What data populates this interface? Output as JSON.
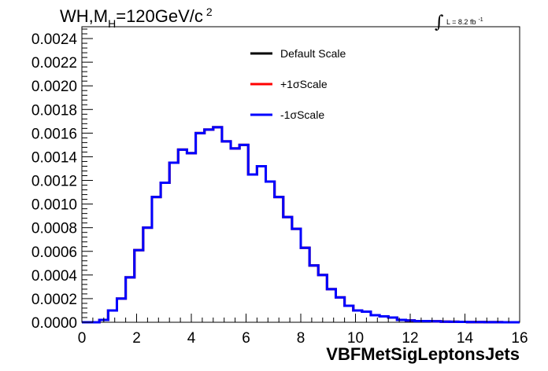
{
  "chart_data": {
    "type": "line",
    "title": "WH,M",
    "title_sub": "H",
    "title_rest": "=120GeV/c",
    "title_sup": "2",
    "lumi_text": "L = 8.2 fb",
    "lumi_sup": "-1",
    "xlabel": "VBFMetSigLeptonsJets",
    "ylabel": "",
    "xlim": [
      0,
      16
    ],
    "ylim": [
      0,
      0.0025
    ],
    "x_ticks": [
      0,
      2,
      4,
      6,
      8,
      10,
      12,
      14,
      16
    ],
    "x_tick_labels": [
      "0",
      "2",
      "4",
      "6",
      "8",
      "10",
      "12",
      "14",
      "16"
    ],
    "y_ticks": [
      0,
      0.0002,
      0.0004,
      0.0006,
      0.0008,
      0.001,
      0.0012,
      0.0014,
      0.0016,
      0.0018,
      0.002,
      0.0022,
      0.0024
    ],
    "y_tick_labels": [
      "0.0000",
      "0.0002",
      "0.0004",
      "0.0006",
      "0.0008",
      "0.0010",
      "0.0012",
      "0.0014",
      "0.0016",
      "0.0018",
      "0.0020",
      "0.0022",
      "0.0024"
    ],
    "grid": false,
    "legend_position": "top-center",
    "bin_edges": [
      0,
      0.32,
      0.64,
      0.96,
      1.28,
      1.6,
      1.92,
      2.24,
      2.56,
      2.88,
      3.2,
      3.52,
      3.84,
      4.16,
      4.48,
      4.8,
      5.12,
      5.44,
      5.76,
      6.08,
      6.4,
      6.72,
      7.04,
      7.36,
      7.68,
      8.0,
      8.32,
      8.64,
      8.96,
      9.28,
      9.6,
      9.92,
      10.24,
      10.56,
      10.88,
      11.2,
      11.52,
      11.84,
      12.16,
      12.48,
      12.8,
      13.12,
      13.44,
      13.76,
      14.08,
      14.4,
      14.72,
      15.04,
      15.36,
      15.68,
      16.0
    ],
    "series": [
      {
        "name": "Default Scale",
        "color": "#000000",
        "values": [
          0,
          0,
          2e-05,
          0.0001,
          0.0002,
          0.00038,
          0.00061,
          0.0008,
          0.00106,
          0.00118,
          0.00135,
          0.00146,
          0.00143,
          0.0016,
          0.00163,
          0.00165,
          0.00153,
          0.00147,
          0.0015,
          0.00125,
          0.00132,
          0.00119,
          0.00106,
          0.00089,
          0.00079,
          0.00063,
          0.00048,
          0.0004,
          0.00028,
          0.00021,
          0.00014,
          0.0001,
          9e-05,
          6e-05,
          5e-05,
          4e-05,
          2e-05,
          1.5e-05,
          1e-05,
          1e-05,
          8e-06,
          5e-06,
          4e-06,
          3e-06,
          2e-06,
          2e-06,
          1e-06,
          1e-06,
          0,
          0
        ]
      },
      {
        "name": "+1σScale",
        "color": "#ff0000",
        "values": [
          0,
          0,
          2e-05,
          0.0001,
          0.0002,
          0.00038,
          0.00061,
          0.0008,
          0.00106,
          0.00118,
          0.00135,
          0.00146,
          0.00143,
          0.0016,
          0.00163,
          0.00165,
          0.00153,
          0.00147,
          0.0015,
          0.00125,
          0.00132,
          0.00119,
          0.00106,
          0.00089,
          0.00079,
          0.00063,
          0.00048,
          0.0004,
          0.00028,
          0.00021,
          0.00014,
          0.0001,
          9e-05,
          6e-05,
          5e-05,
          4e-05,
          2e-05,
          1.5e-05,
          1e-05,
          1e-05,
          8e-06,
          5e-06,
          4e-06,
          3e-06,
          2e-06,
          2e-06,
          1e-06,
          1e-06,
          0,
          0
        ]
      },
      {
        "name": "-1σScale",
        "color": "#0000ff",
        "values": [
          0,
          0,
          2e-05,
          0.0001,
          0.0002,
          0.00038,
          0.00061,
          0.0008,
          0.00106,
          0.00118,
          0.00135,
          0.00146,
          0.00143,
          0.0016,
          0.00163,
          0.00165,
          0.00153,
          0.00147,
          0.0015,
          0.00125,
          0.00132,
          0.00119,
          0.00106,
          0.00089,
          0.00079,
          0.00063,
          0.00048,
          0.0004,
          0.00028,
          0.00021,
          0.00014,
          0.0001,
          9e-05,
          6e-05,
          5e-05,
          4e-05,
          2e-05,
          1.5e-05,
          1e-05,
          1e-05,
          8e-06,
          5e-06,
          4e-06,
          3e-06,
          2e-06,
          2e-06,
          1e-06,
          1e-06,
          0,
          0
        ]
      }
    ]
  }
}
